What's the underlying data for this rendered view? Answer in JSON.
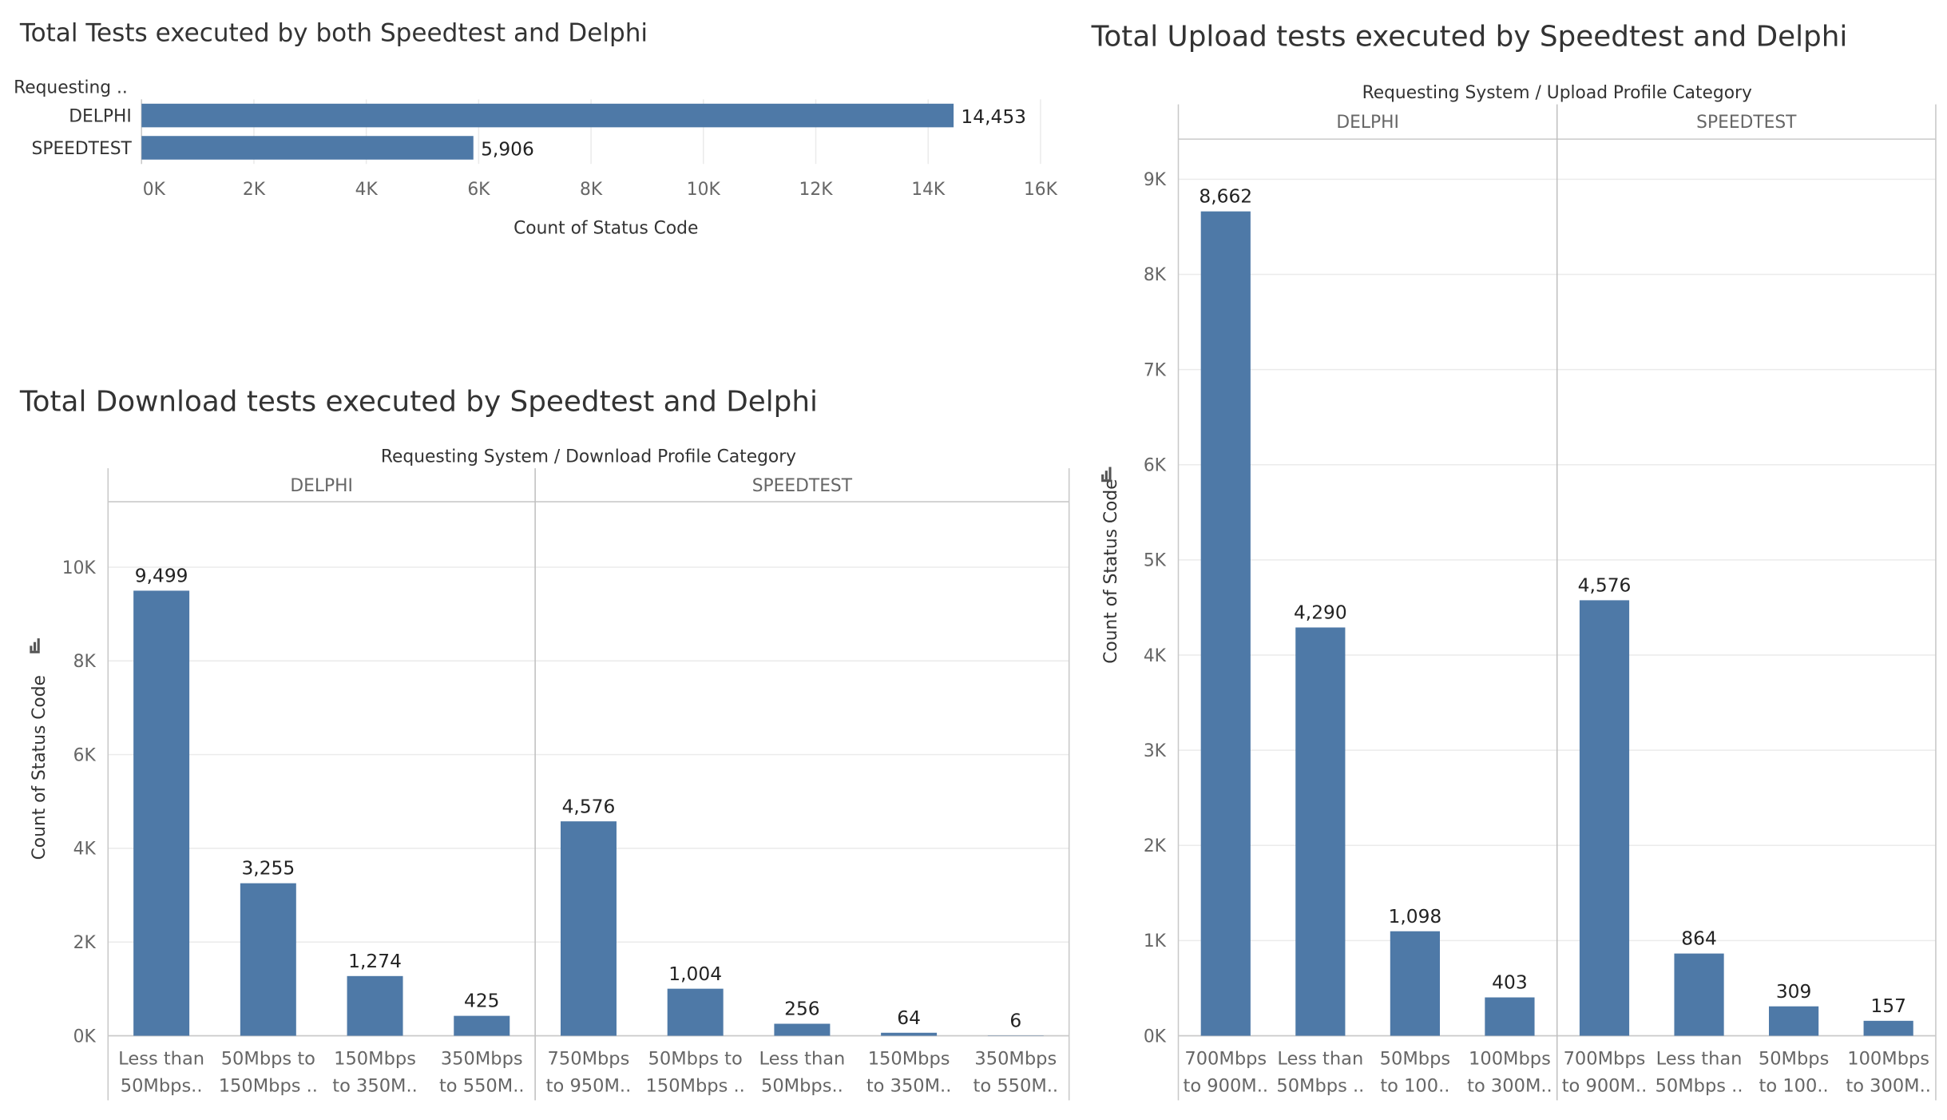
{
  "colors": {
    "bar": "#4e79a7",
    "grid": "#ebebeb",
    "axis": "#c9c9c9",
    "divider": "#c0c0c0",
    "text": "#333333",
    "tick": "#666666"
  },
  "chart_data": [
    {
      "type": "bar",
      "orientation": "horizontal",
      "title": "Total Tests executed by both Speedtest and Delphi",
      "ylabel": "Requesting ..",
      "xlabel": "Count of Status Code",
      "categories": [
        "DELPHI",
        "SPEEDTEST"
      ],
      "values": [
        14453,
        5906
      ],
      "value_labels": [
        "14,453",
        "5,906"
      ],
      "xlim": [
        0,
        16000
      ],
      "ticks": [
        0,
        2000,
        4000,
        6000,
        8000,
        10000,
        12000,
        14000,
        16000
      ],
      "tick_labels": [
        "0K",
        "2K",
        "4K",
        "6K",
        "8K",
        "10K",
        "12K",
        "14K",
        "16K"
      ],
      "grid": true
    },
    {
      "type": "bar",
      "title": "Total Download tests executed by Speedtest and Delphi",
      "header": "Requesting System  /  Download Profile Category",
      "ylabel": "Count of Status Code",
      "ylim": [
        0,
        11000
      ],
      "ticks": [
        0,
        2000,
        4000,
        6000,
        8000,
        10000
      ],
      "tick_labels": [
        "0K",
        "2K",
        "4K",
        "6K",
        "8K",
        "10K"
      ],
      "grid": true,
      "panels": [
        {
          "name": "DELPHI",
          "categories": [
            [
              "Less than",
              "50Mbps.."
            ],
            [
              "50Mbps to",
              "150Mbps .."
            ],
            [
              "150Mbps",
              "to 350M.."
            ],
            [
              "350Mbps",
              "to 550M.."
            ]
          ],
          "values": [
            9499,
            3255,
            1274,
            425
          ],
          "value_labels": [
            "9,499",
            "3,255",
            "1,274",
            "425"
          ]
        },
        {
          "name": "SPEEDTEST",
          "categories": [
            [
              "750Mbps",
              "to 950M.."
            ],
            [
              "50Mbps to",
              "150Mbps .."
            ],
            [
              "Less than",
              "50Mbps.."
            ],
            [
              "150Mbps",
              "to 350M.."
            ],
            [
              "350Mbps",
              "to 550M.."
            ]
          ],
          "values": [
            4576,
            1004,
            256,
            64,
            6
          ],
          "value_labels": [
            "4,576",
            "1,004",
            "256",
            "64",
            "6"
          ]
        }
      ]
    },
    {
      "type": "bar",
      "title": "Total Upload tests executed by Speedtest and Delphi",
      "header": "Requesting System  /  Upload Profile Category",
      "ylabel": "Count of Status Code",
      "ylim": [
        0,
        9500
      ],
      "ticks": [
        0,
        1000,
        2000,
        3000,
        4000,
        5000,
        6000,
        7000,
        8000,
        9000
      ],
      "tick_labels": [
        "0K",
        "1K",
        "2K",
        "3K",
        "4K",
        "5K",
        "6K",
        "7K",
        "8K",
        "9K"
      ],
      "grid": true,
      "panels": [
        {
          "name": "DELPHI",
          "categories": [
            [
              "700Mbps",
              "to 900M.."
            ],
            [
              "Less than",
              "50Mbps .."
            ],
            [
              "50Mbps",
              "to 100.."
            ],
            [
              "100Mbps",
              "to 300M.."
            ]
          ],
          "values": [
            8662,
            4290,
            1098,
            403
          ],
          "value_labels": [
            "8,662",
            "4,290",
            "1,098",
            "403"
          ]
        },
        {
          "name": "SPEEDTEST",
          "categories": [
            [
              "700Mbps",
              "to 900M.."
            ],
            [
              "Less than",
              "50Mbps .."
            ],
            [
              "50Mbps",
              "to 100.."
            ],
            [
              "100Mbps",
              "to 300M.."
            ]
          ],
          "values": [
            4576,
            864,
            309,
            157
          ],
          "value_labels": [
            "4,576",
            "864",
            "309",
            "157"
          ]
        }
      ]
    }
  ]
}
